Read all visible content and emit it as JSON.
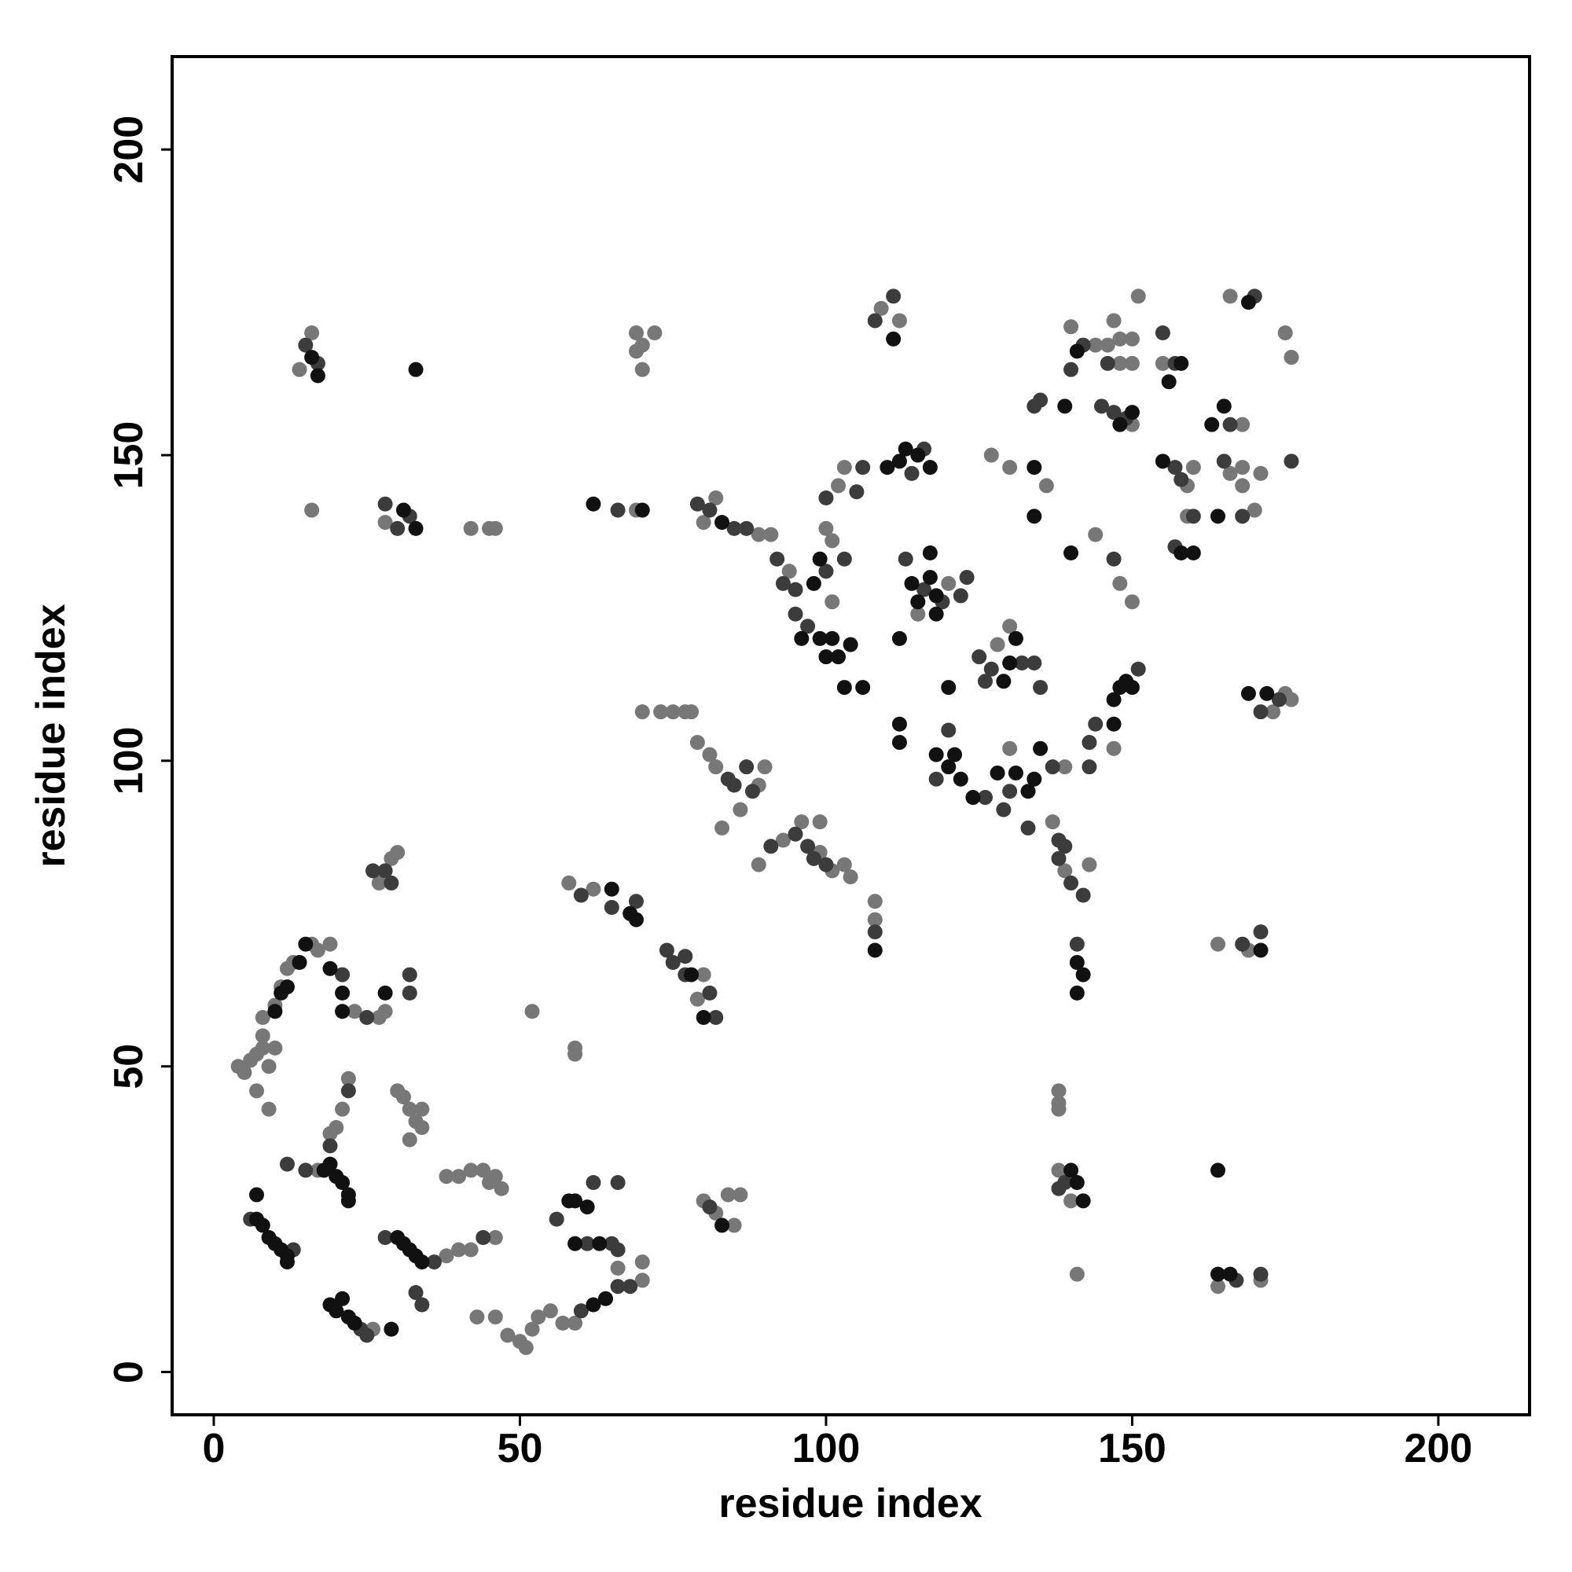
{
  "chart_data": {
    "type": "scatter",
    "xlabel": "residue index",
    "ylabel": "residue index",
    "xlim": [
      -6.8,
      214.9
    ],
    "ylim": [
      -7,
      215.2
    ],
    "xticks": [
      0,
      50,
      100,
      150,
      200
    ],
    "yticks": [
      0,
      50,
      100,
      150,
      200
    ],
    "series": [
      {
        "color": "#777777",
        "x": [
          4,
          5,
          6,
          7,
          8,
          9,
          10,
          7,
          9,
          8,
          8,
          10,
          11,
          12,
          13,
          16,
          17,
          19,
          23,
          27,
          28,
          26,
          19,
          20,
          21,
          22,
          17,
          30,
          31,
          32,
          33,
          34,
          32,
          34,
          38,
          40,
          42,
          46,
          38,
          40,
          42,
          44,
          45,
          47,
          46,
          43,
          46,
          48,
          50,
          51,
          52,
          53,
          55,
          57,
          59,
          70,
          70,
          66,
          52,
          59,
          59,
          58,
          62,
          79,
          80,
          80,
          82,
          84,
          86,
          85,
          27,
          29,
          30,
          16,
          14,
          16,
          28,
          42,
          45,
          46,
          69,
          69,
          70,
          72,
          69,
          70,
          70,
          73,
          75,
          77,
          78,
          82,
          80,
          89,
          91,
          79,
          81,
          82,
          89,
          90,
          86,
          83,
          89,
          93,
          96,
          99,
          99,
          101,
          103,
          104,
          108,
          108,
          94,
          101,
          101,
          100,
          102,
          103,
          109,
          112,
          120,
          115,
          127,
          130,
          136,
          128,
          130,
          130,
          139,
          140,
          144,
          146,
          148,
          150,
          147,
          148,
          150,
          151,
          150,
          155,
          159,
          160,
          159,
          148,
          150,
          144,
          168,
          166,
          168,
          168,
          170,
          171,
          166,
          175,
          176,
          147,
          137,
          139,
          143,
          138,
          138,
          138,
          138,
          140,
          141,
          164,
          169,
          164,
          171,
          173,
          175,
          176
        ],
        "values": [
          50,
          49,
          51,
          52,
          53,
          50,
          53,
          46,
          43,
          55,
          58,
          60,
          63,
          66,
          67,
          70,
          69,
          70,
          59,
          58,
          59,
          7,
          39,
          40,
          43,
          48,
          33,
          46,
          45,
          43,
          41,
          40,
          38,
          43,
          19,
          20,
          20,
          22,
          32,
          32,
          33,
          33,
          31,
          30,
          32,
          9,
          9,
          6,
          5,
          4,
          7,
          9,
          10,
          8,
          8,
          15,
          18,
          17,
          59,
          53,
          52,
          80,
          79,
          61,
          65,
          28,
          26,
          29,
          29,
          24,
          80,
          84,
          85,
          170,
          164,
          141,
          139,
          138,
          138,
          138,
          141,
          170,
          168,
          170,
          167,
          164,
          108,
          108,
          108,
          108,
          108,
          143,
          139,
          137,
          137,
          103,
          101,
          99,
          96,
          99,
          92,
          89,
          83,
          87,
          90,
          90,
          85,
          82,
          83,
          81,
          74,
          77,
          131,
          126,
          136,
          138,
          145,
          148,
          174,
          172,
          129,
          124,
          150,
          148,
          145,
          119,
          122,
          102,
          99,
          171,
          168,
          168,
          165,
          165,
          172,
          169,
          169,
          176,
          155,
          165,
          145,
          148,
          140,
          129,
          126,
          137,
          155,
          147,
          148,
          145,
          141,
          147,
          176,
          170,
          166,
          102,
          90,
          82,
          83,
          46,
          43,
          44,
          33,
          28,
          16,
          70,
          69,
          14,
          15,
          108,
          111,
          110
        ]
      },
      {
        "color": "#3c3c3c",
        "x": [
          25,
          21,
          32,
          32,
          6,
          13,
          24,
          25,
          19,
          22,
          15,
          12,
          28,
          36,
          33,
          34,
          44,
          60,
          66,
          68,
          56,
          61,
          65,
          66,
          62,
          66,
          60,
          65,
          69,
          74,
          75,
          77,
          77,
          81,
          82,
          81,
          26,
          28,
          29,
          15,
          17,
          28,
          32,
          30,
          66,
          79,
          81,
          85,
          87,
          84,
          85,
          87,
          88,
          91,
          95,
          97,
          100,
          98,
          108,
          92,
          93,
          95,
          95,
          97,
          100,
          103,
          100,
          105,
          106,
          108,
          111,
          116,
          114,
          113,
          116,
          119,
          122,
          123,
          120,
          118,
          126,
          125,
          127,
          126,
          132,
          129,
          130,
          133,
          137,
          134,
          135,
          134,
          135,
          140,
          142,
          146,
          145,
          147,
          149,
          155,
          157,
          157,
          158,
          157,
          160,
          147,
          166,
          165,
          168,
          170,
          176,
          151,
          144,
          143,
          143,
          138,
          139,
          138,
          140,
          142,
          141,
          139,
          138,
          168,
          171,
          167,
          171,
          171,
          174
        ],
        "values": [
          58,
          65,
          65,
          62,
          25,
          20,
          7,
          6,
          37,
          46,
          33,
          34,
          22,
          18,
          13,
          11,
          22,
          10,
          14,
          14,
          25,
          21,
          21,
          20,
          31,
          31,
          78,
          76,
          77,
          69,
          67,
          68,
          65,
          62,
          58,
          27,
          82,
          82,
          80,
          168,
          165,
          142,
          140,
          138,
          141,
          142,
          141,
          138,
          138,
          97,
          96,
          99,
          95,
          86,
          88,
          86,
          83,
          84,
          72,
          133,
          129,
          128,
          124,
          122,
          131,
          133,
          143,
          144,
          148,
          172,
          176,
          151,
          147,
          133,
          128,
          126,
          127,
          130,
          105,
          97,
          94,
          117,
          115,
          113,
          116,
          92,
          95,
          89,
          99,
          116,
          112,
          158,
          159,
          164,
          168,
          165,
          158,
          157,
          156,
          170,
          165,
          148,
          146,
          135,
          140,
          133,
          155,
          149,
          140,
          176,
          149,
          115,
          106,
          103,
          99,
          87,
          86,
          84,
          80,
          78,
          70,
          31,
          30,
          70,
          72,
          15,
          16,
          108,
          110
        ]
      },
      {
        "color": "#111111",
        "x": [
          10,
          11,
          12,
          14,
          15,
          19,
          21,
          21,
          28,
          7,
          8,
          9,
          10,
          11,
          12,
          12,
          7,
          19,
          20,
          21,
          22,
          23,
          29,
          18,
          19,
          20,
          21,
          22,
          22,
          30,
          31,
          32,
          33,
          34,
          58,
          59,
          61,
          59,
          63,
          62,
          64,
          65,
          68,
          69,
          78,
          80,
          83,
          16,
          17,
          33,
          31,
          33,
          62,
          70,
          83,
          99,
          98,
          96,
          99,
          101,
          100,
          102,
          104,
          103,
          106,
          108,
          111,
          110,
          112,
          113,
          115,
          117,
          112,
          112,
          112,
          114,
          115,
          117,
          118,
          117,
          118,
          118,
          120,
          121,
          122,
          124,
          120,
          129,
          130,
          131,
          128,
          131,
          133,
          134,
          135,
          140,
          134,
          134,
          139,
          141,
          148,
          150,
          156,
          158,
          155,
          158,
          160,
          163,
          165,
          164,
          147,
          148,
          149,
          150,
          147,
          141,
          142,
          141,
          140,
          141,
          142,
          164,
          171,
          164,
          166,
          169,
          172,
          169
        ],
        "values": [
          59,
          62,
          63,
          67,
          70,
          66,
          62,
          59,
          62,
          25,
          24,
          22,
          21,
          20,
          19,
          18,
          29,
          11,
          10,
          12,
          9,
          8,
          7,
          33,
          34,
          32,
          31,
          29,
          28,
          22,
          21,
          20,
          19,
          18,
          28,
          28,
          27,
          21,
          21,
          11,
          12,
          79,
          75,
          74,
          65,
          58,
          24,
          166,
          163,
          164,
          141,
          138,
          142,
          141,
          139,
          133,
          129,
          120,
          120,
          120,
          117,
          117,
          119,
          112,
          112,
          69,
          169,
          148,
          149,
          151,
          150,
          148,
          120,
          106,
          103,
          129,
          126,
          130,
          127,
          134,
          124,
          101,
          99,
          101,
          97,
          94,
          112,
          113,
          116,
          120,
          98,
          98,
          95,
          97,
          102,
          134,
          148,
          140,
          158,
          167,
          155,
          157,
          162,
          165,
          149,
          134,
          134,
          155,
          158,
          140,
          110,
          112,
          113,
          112,
          106,
          67,
          65,
          62,
          33,
          31,
          28,
          33,
          69,
          16,
          16,
          111,
          111,
          175
        ]
      }
    ]
  }
}
